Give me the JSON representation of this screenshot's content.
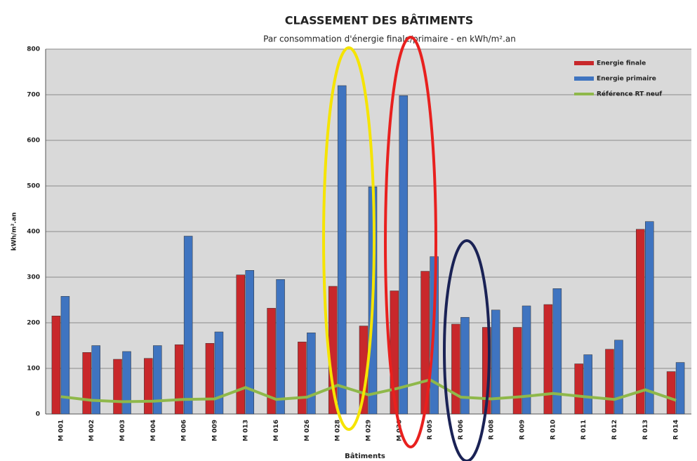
{
  "chart_data": {
    "type": "bar",
    "title": "CLASSEMENT DES BÂTIMENTS",
    "subtitle": "Par consommation d'énergie finale/primaire  - en kWh/m².an",
    "y_label": "kWh/m².an",
    "x_label": "Bâtiments",
    "categories": [
      "M 001",
      "M 002",
      "M 003",
      "M 004",
      "M 006",
      "M 009",
      "M 013",
      "M 016",
      "M 026",
      "M 028",
      "M 029",
      "M 030",
      "R 005",
      "R 006",
      "R 008",
      "R 009",
      "R 010",
      "R 011",
      "R 012",
      "R 013",
      "R 014"
    ],
    "series": [
      {
        "name": "Energie finale",
        "type": "bar",
        "color": "#c8282b",
        "values": [
          215,
          135,
          120,
          122,
          152,
          155,
          305,
          232,
          158,
          280,
          193,
          270,
          313,
          197,
          190,
          190,
          240,
          110,
          142,
          405,
          93
        ]
      },
      {
        "name": "Energie primaire",
        "type": "bar",
        "color": "#3f74c0",
        "values": [
          258,
          150,
          137,
          150,
          390,
          180,
          315,
          295,
          178,
          720,
          498,
          698,
          345,
          212,
          228,
          237,
          275,
          130,
          162,
          422,
          113
        ]
      },
      {
        "name": "Référence RT neuf",
        "type": "line",
        "color": "#8fb84a",
        "values": [
          38,
          30,
          27,
          28,
          32,
          33,
          58,
          32,
          37,
          63,
          42,
          57,
          75,
          37,
          33,
          38,
          45,
          38,
          32,
          53,
          30
        ]
      }
    ],
    "ylim": [
      0,
      800
    ],
    "yticks": [
      0,
      100,
      200,
      300,
      400,
      500,
      600,
      700,
      800
    ],
    "grid": true,
    "legend": "top-right"
  }
}
